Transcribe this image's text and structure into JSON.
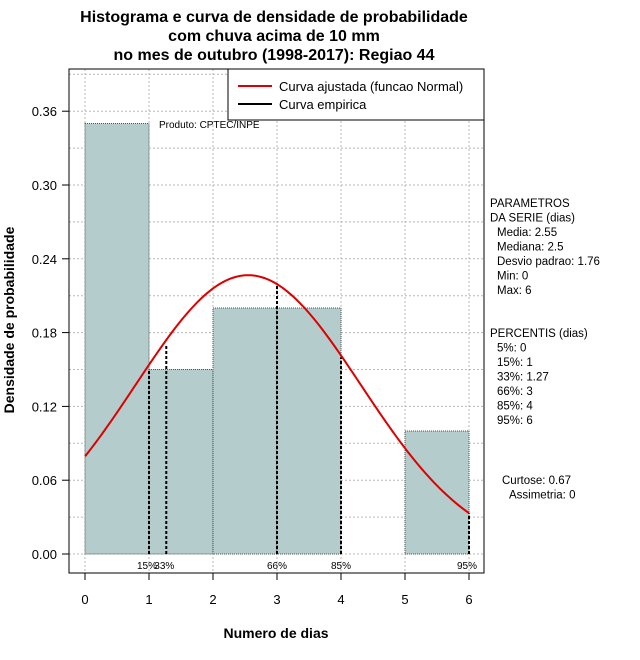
{
  "chart_data": {
    "type": "bar",
    "title": [
      "Histograma e curva de densidade de probabilidade",
      "com chuva acima de 10 mm",
      "no mes de outubro (1998-2017): Regiao 44"
    ],
    "xlabel": "Numero de dias",
    "ylabel": "Densidade de probabilidade",
    "xlim": [
      -0.2,
      6.2
    ],
    "ylim": [
      -0.015,
      0.395
    ],
    "x_ticks": [
      0,
      1,
      2,
      3,
      4,
      5,
      6
    ],
    "y_ticks": [
      0.0,
      0.06,
      0.12,
      0.18,
      0.24,
      0.3,
      0.36
    ],
    "y_tick_labels": [
      "0.00",
      "0.06",
      "0.12",
      "0.18",
      "0.24",
      "0.30",
      "0.36"
    ],
    "grid": true,
    "bins": [
      {
        "x0": 0,
        "x1": 1,
        "density": 0.35
      },
      {
        "x0": 1,
        "x1": 2,
        "density": 0.15
      },
      {
        "x0": 2,
        "x1": 3,
        "density": 0.2
      },
      {
        "x0": 3,
        "x1": 4,
        "density": 0.2
      },
      {
        "x0": 4,
        "x1": 5,
        "density": 0.0
      },
      {
        "x0": 5,
        "x1": 6,
        "density": 0.1
      }
    ],
    "bar_color": "#b4cccc",
    "normal_curve": {
      "mean": 2.55,
      "sd": 1.76,
      "x_range": [
        0,
        6
      ],
      "color": "#dd0000"
    },
    "percentile_lines": [
      {
        "label": "15%",
        "x": 1,
        "y": 0.15
      },
      {
        "label": "33%",
        "x": 1.27,
        "y": 0.17
      },
      {
        "label": "66%",
        "x": 3,
        "y": 0.22
      },
      {
        "label": "85%",
        "x": 4,
        "y": 0.16
      },
      {
        "label": "95%",
        "x": 6,
        "y": 0.033
      }
    ],
    "legend": {
      "position": "top-right",
      "entries": [
        {
          "label": "Curva ajustada (funcao Normal)",
          "color": "#dd0000"
        },
        {
          "label": "Curva empirica",
          "color": "#000000"
        }
      ]
    },
    "credit": "Produto: CPTEC/INPE"
  },
  "side_panel": {
    "parametros": [
      "PARAMETROS",
      "DA SERIE (dias)",
      "Media: 2.55",
      "Mediana: 2.5",
      "Desvio padrao: 1.76",
      "Min: 0",
      "Max: 6"
    ],
    "percentis": [
      "PERCENTIS (dias)",
      "5%: 0",
      "15%: 1",
      "33%: 1.27",
      "66%: 3",
      "85%: 4",
      "95%: 6"
    ],
    "forma": [
      "Curtose: 0.67",
      "Assimetria: 0"
    ]
  }
}
